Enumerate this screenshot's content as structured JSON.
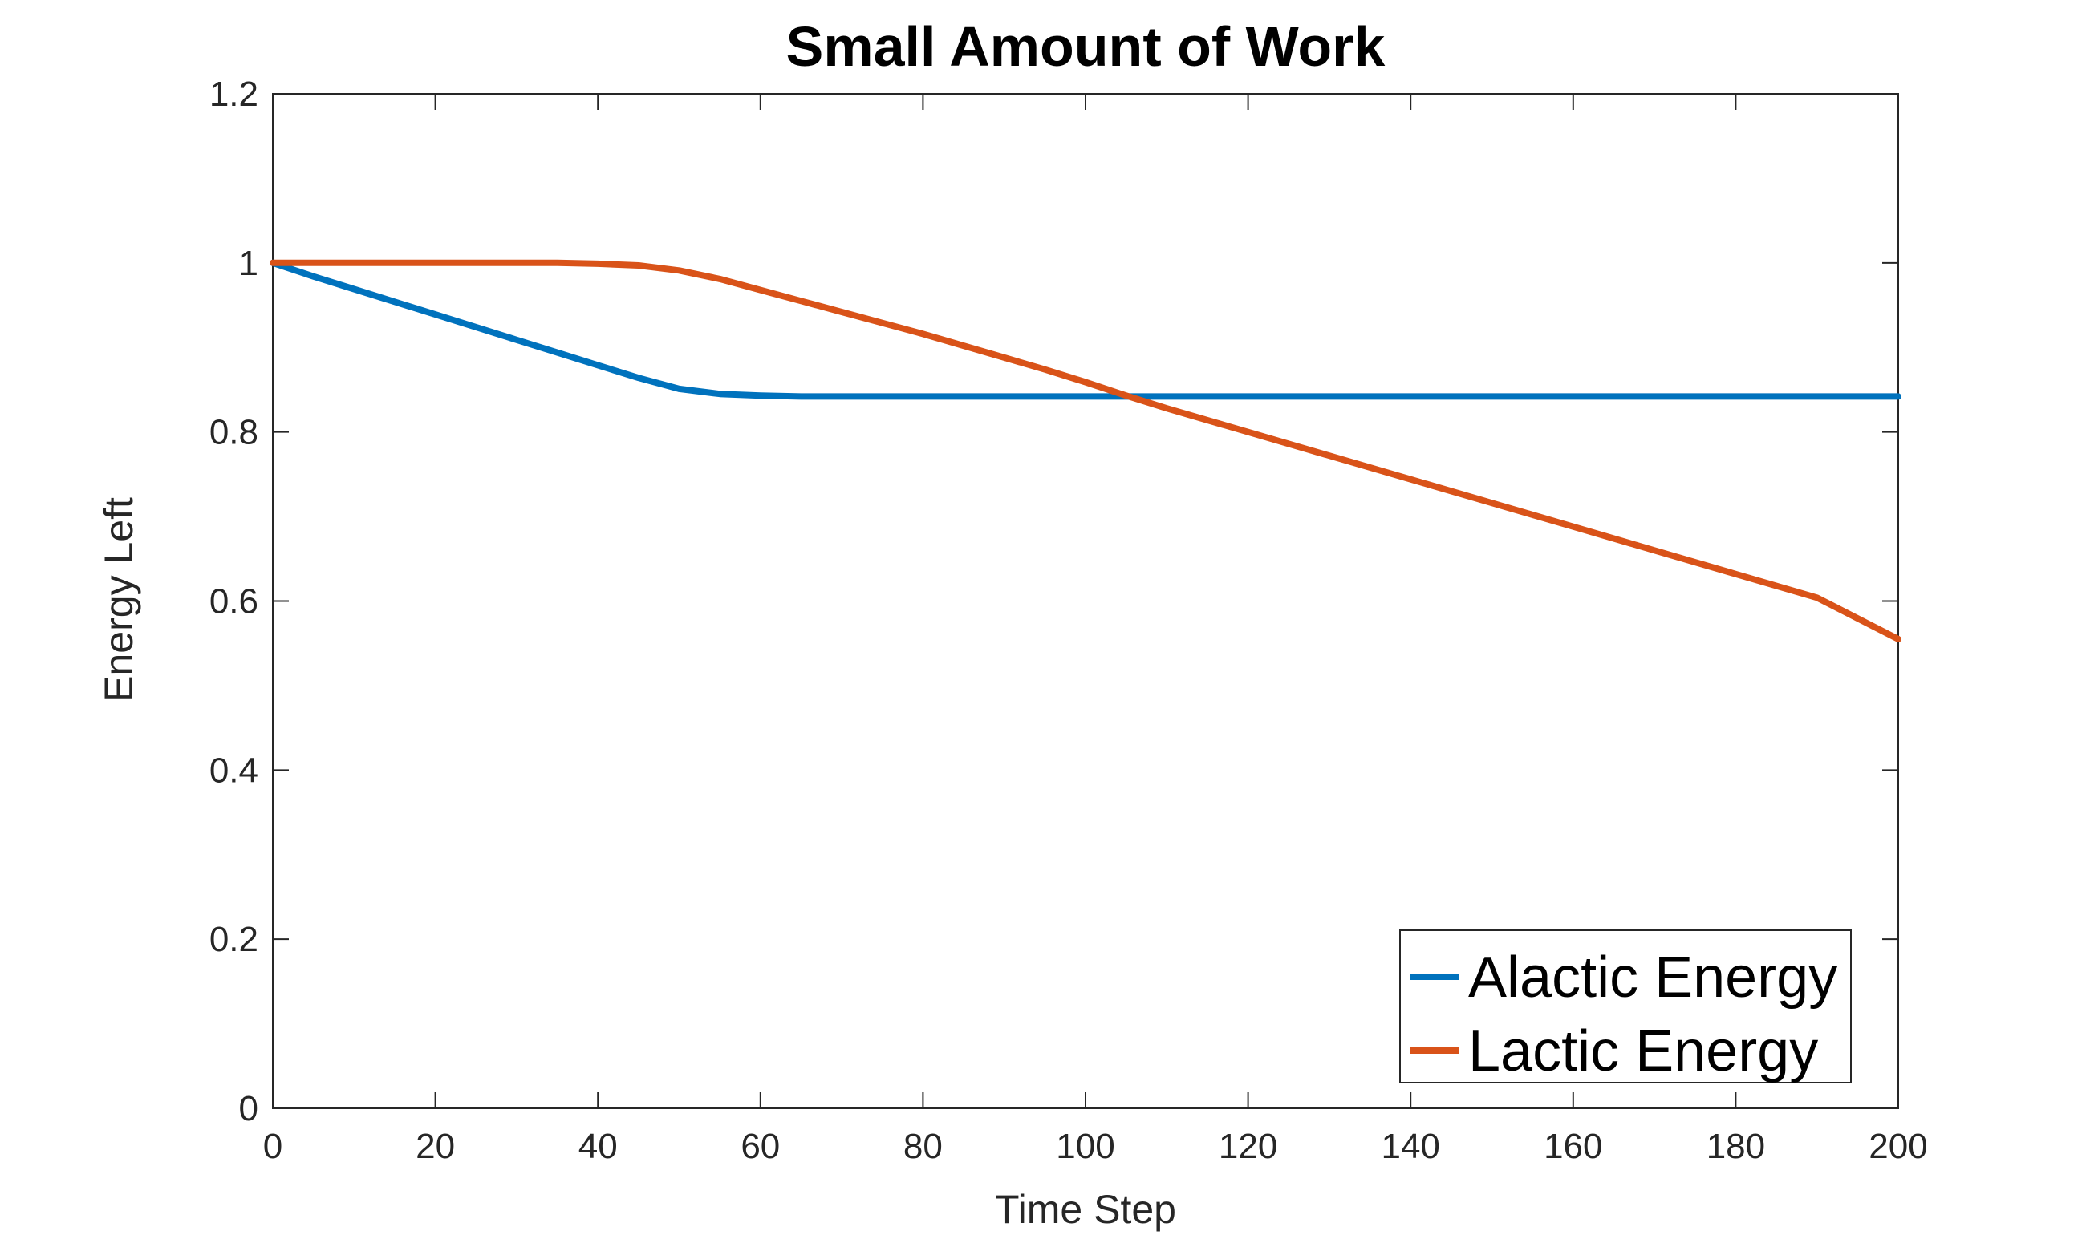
{
  "chart_data": {
    "type": "line",
    "title": "Small Amount of Work",
    "xlabel": "Time Step",
    "ylabel": "Energy Left",
    "xlim": [
      0,
      200
    ],
    "ylim": [
      0,
      1.2
    ],
    "xticks": [
      0,
      20,
      40,
      60,
      80,
      100,
      120,
      140,
      160,
      180,
      200
    ],
    "yticks": [
      0,
      0.2,
      0.4,
      0.6,
      0.8,
      1,
      1.2
    ],
    "xtick_labels": [
      "0",
      "20",
      "40",
      "60",
      "80",
      "100",
      "120",
      "140",
      "160",
      "180",
      "200"
    ],
    "ytick_labels": [
      "0",
      "0.2",
      "0.4",
      "0.6",
      "0.8",
      "1",
      "1.2"
    ],
    "grid": false,
    "legend_location": "bottom-right",
    "series": [
      {
        "name": "Alactic Energy",
        "color": "#0072BD",
        "x": [
          0,
          5,
          10,
          15,
          20,
          25,
          30,
          35,
          40,
          45,
          50,
          55,
          60,
          65,
          70,
          75,
          80,
          85,
          90,
          95,
          100,
          105,
          110,
          120,
          130,
          140,
          150,
          160,
          170,
          180,
          190,
          200
        ],
        "y": [
          1.0,
          0.984,
          0.969,
          0.954,
          0.939,
          0.924,
          0.909,
          0.894,
          0.879,
          0.864,
          0.851,
          0.845,
          0.843,
          0.842,
          0.842,
          0.842,
          0.842,
          0.842,
          0.842,
          0.842,
          0.842,
          0.842,
          0.842,
          0.842,
          0.842,
          0.842,
          0.842,
          0.842,
          0.842,
          0.842,
          0.842,
          0.842
        ]
      },
      {
        "name": "Lactic Energy",
        "color": "#D95319",
        "x": [
          0,
          10,
          20,
          30,
          35,
          40,
          45,
          50,
          55,
          60,
          65,
          70,
          75,
          80,
          85,
          90,
          95,
          100,
          105,
          110,
          120,
          130,
          140,
          150,
          160,
          170,
          180,
          190,
          200
        ],
        "y": [
          1.0,
          1.0,
          1.0,
          1.0,
          1.0,
          0.999,
          0.997,
          0.991,
          0.981,
          0.968,
          0.955,
          0.942,
          0.929,
          0.916,
          0.902,
          0.888,
          0.874,
          0.859,
          0.843,
          0.828,
          0.8,
          0.772,
          0.744,
          0.716,
          0.688,
          0.66,
          0.632,
          0.604,
          0.555
        ]
      }
    ]
  }
}
